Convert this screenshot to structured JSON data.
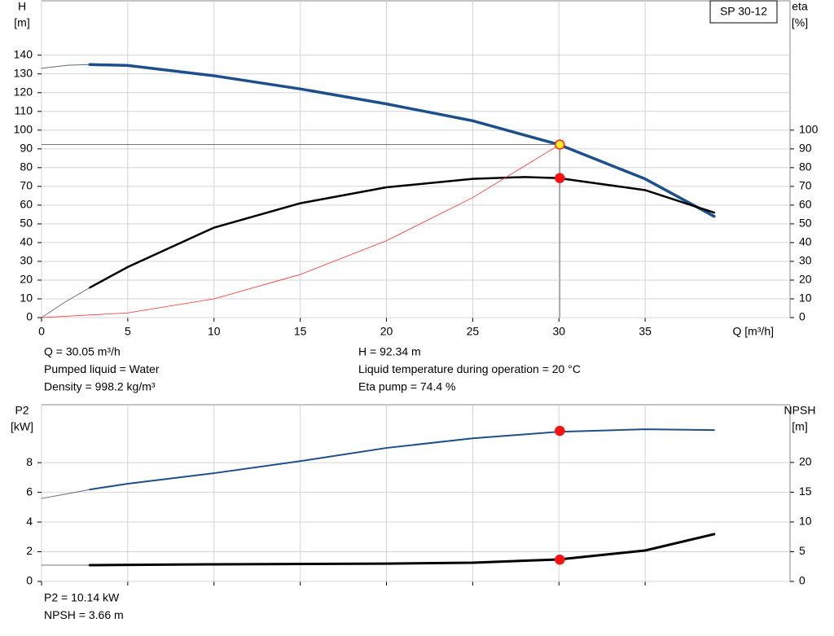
{
  "chart_data": [
    {
      "type": "line",
      "y_label": "H",
      "y_unit": "[m]",
      "y2_label": "eta",
      "y2_unit": "[%]",
      "x_label": "Q [m³/h]",
      "box_label": "SP 30-12",
      "xlim": [
        0,
        43.4
      ],
      "xticks": [
        0,
        5,
        10,
        15,
        20,
        25,
        30,
        35
      ],
      "show_xtick_labels": true,
      "ylim": [
        0,
        169
      ],
      "yticks": [
        0,
        10,
        20,
        30,
        40,
        50,
        60,
        70,
        80,
        90,
        100,
        110,
        120,
        130,
        140
      ],
      "y2lim": [
        0,
        169
      ],
      "y2ticks": [
        0,
        10,
        20,
        30,
        40,
        50,
        60,
        70,
        80,
        90,
        100
      ],
      "grid": true,
      "series": [
        {
          "color": "#5a6b80",
          "width": 1,
          "x": [
            0,
            1.5,
            2.8
          ],
          "values": [
            133,
            134.6,
            135
          ]
        },
        {
          "color": "#1c4f8c",
          "width": 3.5,
          "x": [
            2.8,
            5,
            10,
            15,
            20,
            25,
            30,
            35,
            39
          ],
          "values": [
            135,
            134.5,
            129,
            122,
            114,
            105,
            92.3,
            74,
            54
          ]
        },
        {
          "color": "#777777",
          "width": 1,
          "x": [
            0,
            1.4,
            2.8
          ],
          "values": [
            0,
            8.5,
            16
          ],
          "axis": "y2"
        },
        {
          "color": "#000000",
          "width": 2.5,
          "x": [
            2.8,
            5,
            10,
            15,
            20,
            25,
            28,
            30,
            35,
            39
          ],
          "values": [
            16,
            27,
            48,
            61,
            69.5,
            74,
            75,
            74.4,
            68,
            56
          ],
          "axis": "y2"
        },
        {
          "color": "#ff3030",
          "width": 0.8,
          "x": [
            0,
            5,
            10,
            15,
            20,
            25,
            30.05
          ],
          "values": [
            0,
            2.5,
            10,
            23,
            41,
            64,
            92.34
          ]
        }
      ],
      "points": [
        {
          "x": 30.05,
          "value": 92.34,
          "fill": "#ffee22",
          "stroke": "#ff2020",
          "guides": true
        },
        {
          "x": 30.05,
          "value": 74.4,
          "fill": "#ff1010",
          "stroke": "#ff1010",
          "axis": "y2"
        }
      ],
      "notes": [
        [
          "Q = 30.05 m³/h",
          "Pumped liquid = Water",
          "Density = 998.2 kg/m³"
        ],
        [
          "H = 92.34 m",
          "Liquid temperature during operation = 20 °C",
          "Eta pump = 74.4 %"
        ]
      ]
    },
    {
      "type": "line",
      "y_label": "P2",
      "y_unit": "[kW]",
      "y2_label": "NPSH",
      "y2_unit": "[m]",
      "xlim": [
        0,
        43.4
      ],
      "xticks": [
        0,
        5,
        10,
        15,
        20,
        25,
        30,
        35
      ],
      "show_xtick_labels": false,
      "ylim": [
        0,
        11.9
      ],
      "yticks": [
        0,
        2,
        4,
        6,
        8
      ],
      "y2lim": [
        0,
        29.7
      ],
      "y2ticks": [
        0,
        5,
        10,
        15,
        20
      ],
      "grid": true,
      "series": [
        {
          "color": "#5a6b80",
          "width": 1,
          "x": [
            0,
            1.5,
            2.8
          ],
          "values": [
            5.59,
            5.9,
            6.19
          ]
        },
        {
          "color": "#1c4f8c",
          "width": 2,
          "x": [
            2.8,
            5,
            10,
            15,
            20,
            25,
            30,
            35,
            39
          ],
          "values": [
            6.19,
            6.58,
            7.29,
            8.1,
            8.99,
            9.64,
            10.08,
            10.25,
            10.19
          ]
        },
        {
          "color": "#777777",
          "width": 1,
          "x": [
            0,
            2.8
          ],
          "values": [
            2.74,
            2.74
          ],
          "axis": "y2"
        },
        {
          "color": "#000000",
          "width": 3,
          "x": [
            2.8,
            10,
            20,
            25,
            30,
            35,
            39
          ],
          "values": [
            2.74,
            2.88,
            3.0,
            3.15,
            3.7,
            5.2,
            7.95
          ],
          "axis": "y2"
        }
      ],
      "points": [
        {
          "x": 30.05,
          "value": 10.14,
          "fill": "#ff1010",
          "stroke": "#ff1010"
        },
        {
          "x": 30.05,
          "value": 3.66,
          "fill": "#ff1010",
          "stroke": "#ff1010",
          "axis": "y2"
        }
      ],
      "notes": [
        [
          "P2 = 10.14 kW",
          "NPSH = 3.66 m"
        ]
      ]
    }
  ]
}
